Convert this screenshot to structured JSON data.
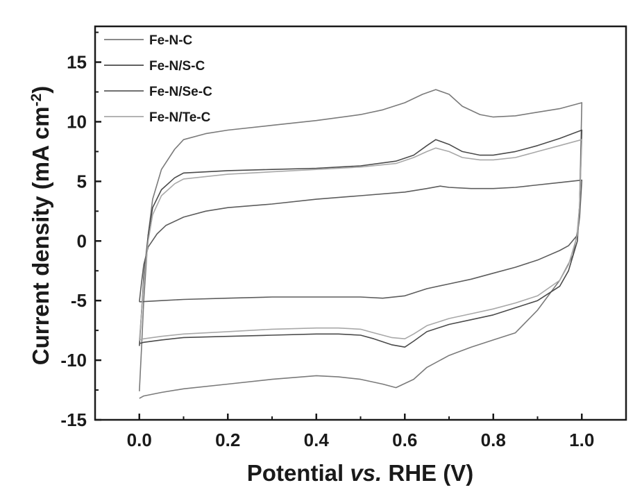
{
  "chart_data": {
    "type": "line",
    "xlabel_parts": {
      "a": "Potential ",
      "b": "vs.",
      "c": " RHE (V)"
    },
    "ylabel_parts": {
      "a": "Current density (mA cm",
      "b": "-2",
      "c": ")"
    },
    "xlim": [
      -0.1,
      1.1
    ],
    "ylim": [
      -15,
      18
    ],
    "xticks": [
      0.0,
      0.2,
      0.4,
      0.6,
      0.8,
      1.0
    ],
    "xtick_labels": [
      "0.0",
      "0.2",
      "0.4",
      "0.6",
      "0.8",
      "1.0"
    ],
    "yticks": [
      -15,
      -10,
      -5,
      0,
      5,
      10,
      15
    ],
    "ytick_labels": [
      "-15",
      "-10",
      "-5",
      "0",
      "5",
      "10",
      "15"
    ],
    "legend_position": "top-left",
    "series": [
      {
        "name": "Fe-N-C",
        "color": "#7a7a7a",
        "anodic": [
          [
            0.0,
            -12.6
          ],
          [
            0.005,
            -9.0
          ],
          [
            0.01,
            -5.0
          ],
          [
            0.02,
            0.5
          ],
          [
            0.03,
            3.5
          ],
          [
            0.05,
            6.0
          ],
          [
            0.08,
            7.7
          ],
          [
            0.1,
            8.5
          ],
          [
            0.15,
            9.0
          ],
          [
            0.2,
            9.3
          ],
          [
            0.3,
            9.7
          ],
          [
            0.4,
            10.1
          ],
          [
            0.5,
            10.6
          ],
          [
            0.55,
            11.0
          ],
          [
            0.6,
            11.6
          ],
          [
            0.64,
            12.3
          ],
          [
            0.67,
            12.7
          ],
          [
            0.7,
            12.3
          ],
          [
            0.73,
            11.3
          ],
          [
            0.77,
            10.6
          ],
          [
            0.8,
            10.4
          ],
          [
            0.85,
            10.5
          ],
          [
            0.9,
            10.8
          ],
          [
            0.95,
            11.1
          ],
          [
            1.0,
            11.6
          ]
        ],
        "cathodic": [
          [
            1.0,
            11.6
          ],
          [
            0.995,
            3.0
          ],
          [
            0.99,
            0.8
          ],
          [
            0.98,
            -1.2
          ],
          [
            0.95,
            -3.3
          ],
          [
            0.9,
            -5.8
          ],
          [
            0.85,
            -7.7
          ],
          [
            0.8,
            -8.3
          ],
          [
            0.75,
            -8.9
          ],
          [
            0.7,
            -9.6
          ],
          [
            0.65,
            -10.6
          ],
          [
            0.62,
            -11.6
          ],
          [
            0.58,
            -12.3
          ],
          [
            0.55,
            -12.0
          ],
          [
            0.5,
            -11.6
          ],
          [
            0.45,
            -11.4
          ],
          [
            0.4,
            -11.3
          ],
          [
            0.3,
            -11.6
          ],
          [
            0.2,
            -12.0
          ],
          [
            0.1,
            -12.4
          ],
          [
            0.05,
            -12.7
          ],
          [
            0.01,
            -13.0
          ],
          [
            0.0,
            -13.2
          ]
        ]
      },
      {
        "name": "Fe-N/S-C",
        "color": "#4a4a4a",
        "anodic": [
          [
            0.0,
            -8.8
          ],
          [
            0.005,
            -6.0
          ],
          [
            0.01,
            -3.0
          ],
          [
            0.02,
            0.5
          ],
          [
            0.03,
            2.8
          ],
          [
            0.05,
            4.3
          ],
          [
            0.08,
            5.3
          ],
          [
            0.1,
            5.7
          ],
          [
            0.2,
            5.9
          ],
          [
            0.3,
            6.0
          ],
          [
            0.4,
            6.1
          ],
          [
            0.5,
            6.3
          ],
          [
            0.58,
            6.7
          ],
          [
            0.62,
            7.2
          ],
          [
            0.65,
            8.0
          ],
          [
            0.67,
            8.5
          ],
          [
            0.7,
            8.1
          ],
          [
            0.73,
            7.5
          ],
          [
            0.77,
            7.2
          ],
          [
            0.8,
            7.2
          ],
          [
            0.85,
            7.5
          ],
          [
            0.9,
            8.0
          ],
          [
            0.95,
            8.6
          ],
          [
            1.0,
            9.3
          ]
        ],
        "cathodic": [
          [
            1.0,
            9.3
          ],
          [
            0.995,
            3.0
          ],
          [
            0.99,
            0.0
          ],
          [
            0.97,
            -2.5
          ],
          [
            0.95,
            -3.8
          ],
          [
            0.9,
            -5.0
          ],
          [
            0.85,
            -5.6
          ],
          [
            0.8,
            -6.2
          ],
          [
            0.75,
            -6.6
          ],
          [
            0.7,
            -7.0
          ],
          [
            0.65,
            -7.6
          ],
          [
            0.62,
            -8.4
          ],
          [
            0.6,
            -8.9
          ],
          [
            0.57,
            -8.7
          ],
          [
            0.53,
            -8.2
          ],
          [
            0.5,
            -7.9
          ],
          [
            0.45,
            -7.8
          ],
          [
            0.4,
            -7.8
          ],
          [
            0.3,
            -7.9
          ],
          [
            0.2,
            -8.0
          ],
          [
            0.1,
            -8.1
          ],
          [
            0.05,
            -8.3
          ],
          [
            0.01,
            -8.5
          ],
          [
            0.0,
            -8.6
          ]
        ]
      },
      {
        "name": "Fe-N/Se-C",
        "color": "#5c5c5c",
        "anodic": [
          [
            0.0,
            -5.1
          ],
          [
            0.005,
            -3.5
          ],
          [
            0.01,
            -2.0
          ],
          [
            0.02,
            -0.5
          ],
          [
            0.04,
            0.6
          ],
          [
            0.06,
            1.3
          ],
          [
            0.1,
            2.0
          ],
          [
            0.15,
            2.5
          ],
          [
            0.2,
            2.8
          ],
          [
            0.3,
            3.1
          ],
          [
            0.4,
            3.5
          ],
          [
            0.5,
            3.8
          ],
          [
            0.6,
            4.1
          ],
          [
            0.65,
            4.4
          ],
          [
            0.68,
            4.6
          ],
          [
            0.7,
            4.5
          ],
          [
            0.75,
            4.4
          ],
          [
            0.8,
            4.4
          ],
          [
            0.85,
            4.5
          ],
          [
            0.9,
            4.7
          ],
          [
            0.95,
            4.9
          ],
          [
            1.0,
            5.1
          ]
        ],
        "cathodic": [
          [
            1.0,
            5.1
          ],
          [
            0.995,
            2.0
          ],
          [
            0.99,
            0.5
          ],
          [
            0.97,
            -0.4
          ],
          [
            0.95,
            -0.8
          ],
          [
            0.9,
            -1.6
          ],
          [
            0.85,
            -2.2
          ],
          [
            0.8,
            -2.7
          ],
          [
            0.75,
            -3.2
          ],
          [
            0.7,
            -3.6
          ],
          [
            0.65,
            -4.0
          ],
          [
            0.6,
            -4.6
          ],
          [
            0.55,
            -4.8
          ],
          [
            0.5,
            -4.7
          ],
          [
            0.4,
            -4.7
          ],
          [
            0.3,
            -4.7
          ],
          [
            0.2,
            -4.8
          ],
          [
            0.1,
            -4.9
          ],
          [
            0.05,
            -5.0
          ],
          [
            0.0,
            -5.1
          ]
        ]
      },
      {
        "name": "Fe-N/Te-C",
        "color": "#a8a8a8",
        "anodic": [
          [
            0.0,
            -8.4
          ],
          [
            0.005,
            -6.0
          ],
          [
            0.01,
            -3.5
          ],
          [
            0.02,
            0.0
          ],
          [
            0.03,
            2.2
          ],
          [
            0.05,
            3.8
          ],
          [
            0.08,
            4.8
          ],
          [
            0.1,
            5.2
          ],
          [
            0.2,
            5.6
          ],
          [
            0.3,
            5.8
          ],
          [
            0.4,
            6.0
          ],
          [
            0.5,
            6.2
          ],
          [
            0.58,
            6.5
          ],
          [
            0.62,
            7.0
          ],
          [
            0.65,
            7.5
          ],
          [
            0.67,
            7.8
          ],
          [
            0.7,
            7.5
          ],
          [
            0.73,
            7.0
          ],
          [
            0.77,
            6.8
          ],
          [
            0.8,
            6.8
          ],
          [
            0.85,
            7.0
          ],
          [
            0.9,
            7.5
          ],
          [
            0.95,
            8.0
          ],
          [
            1.0,
            8.5
          ]
        ],
        "cathodic": [
          [
            1.0,
            8.5
          ],
          [
            0.995,
            3.0
          ],
          [
            0.99,
            0.5
          ],
          [
            0.97,
            -2.0
          ],
          [
            0.95,
            -3.3
          ],
          [
            0.9,
            -4.6
          ],
          [
            0.85,
            -5.2
          ],
          [
            0.8,
            -5.7
          ],
          [
            0.75,
            -6.1
          ],
          [
            0.7,
            -6.5
          ],
          [
            0.65,
            -7.1
          ],
          [
            0.62,
            -7.8
          ],
          [
            0.6,
            -8.2
          ],
          [
            0.57,
            -8.1
          ],
          [
            0.53,
            -7.7
          ],
          [
            0.5,
            -7.4
          ],
          [
            0.45,
            -7.3
          ],
          [
            0.4,
            -7.3
          ],
          [
            0.3,
            -7.4
          ],
          [
            0.2,
            -7.6
          ],
          [
            0.1,
            -7.8
          ],
          [
            0.05,
            -8.0
          ],
          [
            0.01,
            -8.2
          ],
          [
            0.0,
            -8.3
          ]
        ]
      }
    ]
  }
}
